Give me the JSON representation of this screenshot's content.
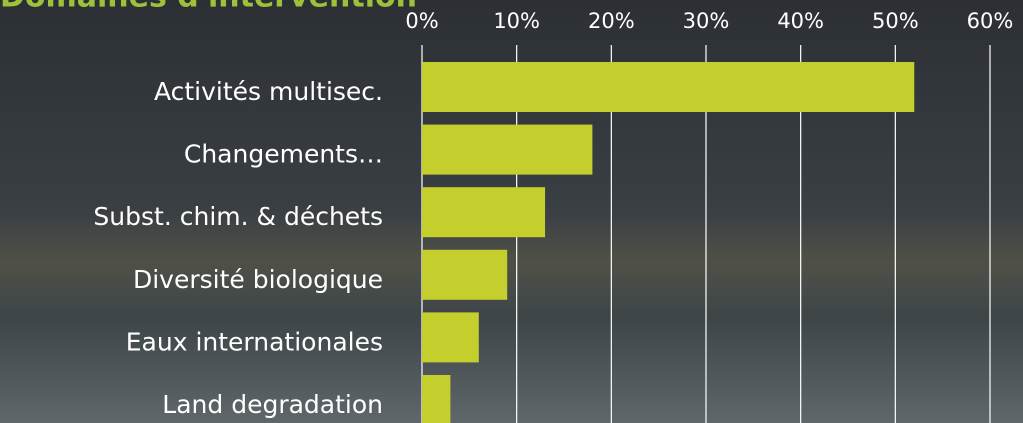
{
  "chart_data": {
    "type": "barh",
    "title": "Domaines d'intervention",
    "categories": [
      "Activités multisec.",
      "Changements…",
      "Subst. chim. & déchets",
      "Diversité biologique",
      "Eaux internationales",
      "Land degradation"
    ],
    "values": [
      52,
      18,
      13,
      9,
      6,
      3
    ],
    "color": "#c4cf2e",
    "xlim": [
      0,
      60
    ],
    "xticks": [
      {
        "value": 0,
        "label": "0%"
      },
      {
        "value": 10,
        "label": "10%"
      },
      {
        "value": 20,
        "label": "20%"
      },
      {
        "value": 30,
        "label": "30%"
      },
      {
        "value": 40,
        "label": "40%"
      },
      {
        "value": 50,
        "label": "50%"
      },
      {
        "value": 60,
        "label": "60%"
      }
    ],
    "grid": true
  }
}
